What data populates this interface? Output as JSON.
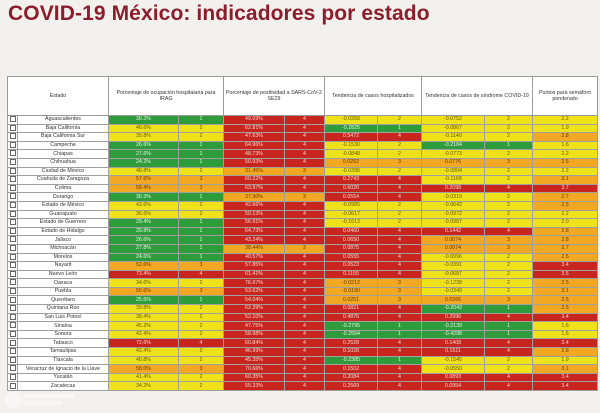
{
  "title": "COVID-19 México: indicadores por estado",
  "headers": {
    "state": "Estado",
    "hosp": "Porcentaje de ocupación hospitalaria para IRAG",
    "posit": "Porcentaje de positividad a SARS-CoV-2 SE29",
    "trend_hosp": "Tendencia de casos hospitalizados",
    "trend_cases": "Tendencia de casos de síndrome COVID-19",
    "points": "Puntos para semáforo ponderado"
  },
  "colors": {
    "g": "#2f9c3c",
    "y": "#f0e21a",
    "o": "#f2a822",
    "r": "#c8251f"
  },
  "rows": [
    {
      "state": "Aguascalientes",
      "hosp": "30.2%",
      "hosp_pts": "1",
      "hosp_c": "g",
      "posit": "49.69%",
      "posit_pts": "4",
      "posit_c": "r",
      "th": "-0.0358",
      "th_pts": "2",
      "th_c": "y",
      "tc": "-0.0752",
      "tc_pts": "2",
      "tc_c": "y",
      "total": "2.2",
      "total_c": "y"
    },
    {
      "state": "Baja California",
      "hosp": "46.6%",
      "hosp_pts": "2",
      "hosp_c": "y",
      "posit": "62.81%",
      "posit_pts": "4",
      "posit_c": "r",
      "th": "-0.2825",
      "th_pts": "1",
      "th_c": "g",
      "tc": "-0.0867",
      "tc_pts": "2",
      "tc_c": "y",
      "total": "1.9",
      "total_c": "y"
    },
    {
      "state": "Baja California Sur",
      "hosp": "35.8%",
      "hosp_pts": "2",
      "hosp_c": "y",
      "posit": "47.63%",
      "posit_pts": "4",
      "posit_c": "r",
      "th": "0.5472",
      "th_pts": "4",
      "th_c": "r",
      "tc": "-0.1140",
      "tc_pts": "2",
      "tc_c": "y",
      "total": "2.8",
      "total_c": "o"
    },
    {
      "state": "Campeche",
      "hosp": "26.6%",
      "hosp_pts": "1",
      "hosp_c": "g",
      "posit": "64.96%",
      "posit_pts": "4",
      "posit_c": "r",
      "th": "-0.1530",
      "th_pts": "2",
      "th_c": "y",
      "tc": "-0.2184",
      "tc_pts": "1",
      "tc_c": "g",
      "total": "1.6",
      "total_c": "y"
    },
    {
      "state": "Chiapas",
      "hosp": "27.6%",
      "hosp_pts": "1",
      "hosp_c": "g",
      "posit": "48.73%",
      "posit_pts": "4",
      "posit_c": "r",
      "th": "-0.0848",
      "th_pts": "2",
      "th_c": "y",
      "tc": "-0.0773",
      "th2": "",
      "tc_pts": "2",
      "tc_c": "y",
      "total": "2.2",
      "total_c": "y"
    },
    {
      "state": "Chihuahua",
      "hosp": "24.2%",
      "hosp_pts": "1",
      "hosp_c": "g",
      "posit": "50.93%",
      "posit_pts": "4",
      "posit_c": "r",
      "th": "0.0252",
      "th_pts": "3",
      "th_c": "o",
      "tc": "0.0776",
      "tc_pts": "3",
      "tc_c": "o",
      "total": "2.5",
      "total_c": "o"
    },
    {
      "state": "Ciudad de México",
      "hosp": "48.8%",
      "hosp_pts": "2",
      "hosp_c": "y",
      "posit": "31.45%",
      "posit_pts": "3",
      "posit_c": "o",
      "th": "-0.0396",
      "th_pts": "2",
      "th_c": "y",
      "tc": "-0.0804",
      "tc_pts": "2",
      "tc_c": "y",
      "total": "2.2",
      "total_c": "y"
    },
    {
      "state": "Coahuila de Zaragoza",
      "hosp": "57.6%",
      "hosp_pts": "3",
      "hosp_c": "o",
      "posit": "60.22%",
      "posit_pts": "4",
      "posit_c": "r",
      "th": "0.2743",
      "th_pts": "4",
      "th_c": "r",
      "tc": "-0.1168",
      "tc_pts": "2",
      "tc_c": "y",
      "total": "3.1",
      "total_c": "o"
    },
    {
      "state": "Colima",
      "hosp": "58.4%",
      "hosp_pts": "3",
      "hosp_c": "o",
      "posit": "63.97%",
      "posit_pts": "4",
      "posit_c": "r",
      "th": "0.6020",
      "th_pts": "4",
      "th_c": "r",
      "tc": "0.2098",
      "tc_pts": "4",
      "tc_c": "r",
      "total": "3.7",
      "total_c": "r"
    },
    {
      "state": "Durango",
      "hosp": "30.3%",
      "hosp_pts": "1",
      "hosp_c": "g",
      "posit": "37.30%",
      "posit_pts": "3",
      "posit_c": "o",
      "th": "0.0554",
      "th_pts": "4",
      "th_c": "r",
      "tc": "-0.0319",
      "tc_pts": "2",
      "tc_c": "y",
      "total": "2.7",
      "total_c": "o"
    },
    {
      "state": "Estado de México",
      "hosp": "43.6%",
      "hosp_pts": "2",
      "hosp_c": "y",
      "posit": "42.66%",
      "posit_pts": "4",
      "posit_c": "r",
      "th": "-0.0985",
      "th_pts": "2",
      "th_c": "y",
      "tc": "-0.0642",
      "tc_pts": "2",
      "tc_c": "y",
      "total": "2.5",
      "total_c": "o"
    },
    {
      "state": "Guanajuato",
      "hosp": "36.6%",
      "hosp_pts": "2",
      "hosp_c": "y",
      "posit": "50.13%",
      "posit_pts": "4",
      "posit_c": "r",
      "th": "-0.0617",
      "th_pts": "2",
      "th_c": "y",
      "tc": "-0.0972",
      "tc_pts": "2",
      "tc_c": "y",
      "total": "2.2",
      "total_c": "y"
    },
    {
      "state": "Estado de Guerrero",
      "hosp": "29.4%",
      "hosp_pts": "1",
      "hosp_c": "g",
      "posit": "56.91%",
      "posit_pts": "4",
      "posit_c": "r",
      "th": "-0.1613",
      "th_pts": "2",
      "th_c": "y",
      "tc": "-0.0987",
      "tc_pts": "2",
      "tc_c": "y",
      "total": "2.0",
      "total_c": "y"
    },
    {
      "state": "Estado de Hidalgo",
      "hosp": "29.8%",
      "hosp_pts": "1",
      "hosp_c": "g",
      "posit": "64.73%",
      "posit_pts": "4",
      "posit_c": "r",
      "th": "0.0460",
      "th_pts": "4",
      "th_c": "r",
      "tc": "0.1442",
      "tc_pts": "4",
      "tc_c": "r",
      "total": "2.8",
      "total_c": "o"
    },
    {
      "state": "Jalisco",
      "hosp": "26.6%",
      "hosp_pts": "1",
      "hosp_c": "g",
      "posit": "43.24%",
      "posit_pts": "4",
      "posit_c": "r",
      "th": "0.0650",
      "th_pts": "4",
      "th_c": "r",
      "tc": "0.0074",
      "tc_pts": "3",
      "tc_c": "o",
      "total": "2.8",
      "total_c": "o"
    },
    {
      "state": "Michoacán",
      "hosp": "27.8%",
      "hosp_pts": "1",
      "hosp_c": "g",
      "posit": "38.44%",
      "posit_pts": "3",
      "posit_c": "o",
      "th": "0.0875",
      "th_pts": "4",
      "th_c": "r",
      "tc": "0.0074",
      "tc_pts": "3",
      "tc_c": "o",
      "total": "2.7",
      "total_c": "o"
    },
    {
      "state": "Morelos",
      "hosp": "24.6%",
      "hosp_pts": "1",
      "hosp_c": "g",
      "posit": "40.57%",
      "posit_pts": "4",
      "posit_c": "r",
      "th": "0.0555",
      "th_pts": "4",
      "th_c": "r",
      "tc": "-0.0096",
      "tc_pts": "2",
      "tc_c": "y",
      "total": "2.5",
      "total_c": "o"
    },
    {
      "state": "Nayarit",
      "hosp": "52.6%",
      "hosp_pts": "3",
      "hosp_c": "o",
      "posit": "57.85%",
      "posit_pts": "4",
      "posit_c": "r",
      "th": "0.0523",
      "th_pts": "4",
      "th_c": "r",
      "tc": "-0.0391",
      "tc_pts": "2",
      "tc_c": "y",
      "total": "3.4",
      "total_c": "r"
    },
    {
      "state": "Nuevo León",
      "hosp": "73.4%",
      "hosp_pts": "4",
      "hosp_c": "r",
      "posit": "61.41%",
      "posit_pts": "4",
      "posit_c": "r",
      "th": "0.1155",
      "th_pts": "4",
      "th_c": "r",
      "tc": "-0.0687",
      "tc_pts": "2",
      "tc_c": "y",
      "total": "3.5",
      "total_c": "r"
    },
    {
      "state": "Oaxaca",
      "hosp": "34.6%",
      "hosp_pts": "2",
      "hosp_c": "y",
      "posit": "76.97%",
      "posit_pts": "4",
      "posit_c": "r",
      "th": "-0.0212",
      "th_pts": "3",
      "th_c": "o",
      "tc": "-0.1238",
      "tc_pts": "2",
      "tc_c": "y",
      "total": "2.5",
      "total_c": "o"
    },
    {
      "state": "Puebla",
      "hosp": "50.6%",
      "hosp_pts": "3",
      "hosp_c": "o",
      "posit": "53.62%",
      "posit_pts": "4",
      "posit_c": "r",
      "th": "-0.0190",
      "th_pts": "3",
      "th_c": "o",
      "tc": "-0.0349",
      "tc_pts": "2",
      "tc_c": "y",
      "total": "3.1",
      "total_c": "o"
    },
    {
      "state": "Querétaro",
      "hosp": "25.6%",
      "hosp_pts": "1",
      "hosp_c": "g",
      "posit": "54.04%",
      "posit_pts": "4",
      "posit_c": "r",
      "th": "0.0251",
      "th_pts": "3",
      "th_c": "o",
      "tc": "0.0266",
      "tc_pts": "3",
      "tc_c": "o",
      "total": "2.5",
      "total_c": "o"
    },
    {
      "state": "Quintana Roo",
      "hosp": "39.8%",
      "hosp_pts": "2",
      "hosp_c": "y",
      "posit": "62.39%",
      "posit_pts": "4",
      "posit_c": "r",
      "th": "0.0821",
      "th_pts": "4",
      "th_c": "r",
      "tc": "-0.2043",
      "tc_pts": "1",
      "tc_c": "g",
      "total": "2.5",
      "total_c": "o"
    },
    {
      "state": "San Luis Potosí",
      "hosp": "38.4%",
      "hosp_pts": "2",
      "hosp_c": "y",
      "posit": "52.10%",
      "posit_pts": "4",
      "posit_c": "r",
      "th": "0.4876",
      "th_pts": "4",
      "th_c": "r",
      "tc": "0.2996",
      "tc_pts": "4",
      "tc_c": "r",
      "total": "3.4",
      "total_c": "r"
    },
    {
      "state": "Sinaloa",
      "hosp": "45.2%",
      "hosp_pts": "2",
      "hosp_c": "y",
      "posit": "47.75%",
      "posit_pts": "4",
      "posit_c": "r",
      "th": "-0.2795",
      "th_pts": "1",
      "th_c": "g",
      "tc": "-0.2139",
      "tc_pts": "1",
      "tc_c": "g",
      "total": "1.6",
      "total_c": "y"
    },
    {
      "state": "Sonora",
      "hosp": "42.4%",
      "hosp_pts": "2",
      "hosp_c": "y",
      "posit": "58.98%",
      "posit_pts": "4",
      "posit_c": "r",
      "th": "-0.2554",
      "th_pts": "1",
      "th_c": "g",
      "tc": "-0.4298",
      "tc_pts": "1",
      "tc_c": "g",
      "total": "1.6",
      "total_c": "y"
    },
    {
      "state": "Tabasco",
      "hosp": "72.6%",
      "hosp_pts": "4",
      "hosp_c": "r",
      "posit": "60.84%",
      "posit_pts": "4",
      "posit_c": "r",
      "th": "0.2528",
      "th_pts": "4",
      "th_c": "r",
      "tc": "0.1408",
      "tc_pts": "4",
      "tc_c": "r",
      "total": "3.4",
      "total_c": "r"
    },
    {
      "state": "Tamaulipas",
      "hosp": "42.4%",
      "hosp_pts": "2",
      "hosp_c": "y",
      "posit": "46.99%",
      "posit_pts": "4",
      "posit_c": "r",
      "th": "0.1028",
      "th_pts": "4",
      "th_c": "r",
      "tc": "0.1511",
      "tc_pts": "4",
      "tc_c": "r",
      "total": "2.8",
      "total_c": "o"
    },
    {
      "state": "Tlaxcala",
      "hosp": "40.8%",
      "hosp_pts": "2",
      "hosp_c": "y",
      "posit": "45.35%",
      "posit_pts": "4",
      "posit_c": "r",
      "th": "-0.2385",
      "th_pts": "1",
      "th_c": "g",
      "tc": "-0.1545",
      "tc_pts": "2",
      "tc_c": "y",
      "total": "1.9",
      "total_c": "y"
    },
    {
      "state": "Veracruz de Ignacio de la Llave",
      "hosp": "58.0%",
      "hosp_pts": "3",
      "hosp_c": "o",
      "posit": "70.66%",
      "posit_pts": "4",
      "posit_c": "r",
      "th": "0.1502",
      "th_pts": "4",
      "th_c": "r",
      "tc": "-0.0550",
      "tc_pts": "2",
      "tc_c": "y",
      "total": "3.1",
      "total_c": "o"
    },
    {
      "state": "Yucatán",
      "hosp": "41.4%",
      "hosp_pts": "2",
      "hosp_c": "y",
      "posit": "60.35%",
      "posit_pts": "4",
      "posit_c": "r",
      "th": "0.2084",
      "th_pts": "4",
      "th_c": "r",
      "tc": "0.0893",
      "tc_pts": "4",
      "tc_c": "r",
      "total": "3.4",
      "total_c": "r"
    },
    {
      "state": "Zacatecas",
      "hosp": "34.2%",
      "hosp_pts": "2",
      "hosp_c": "y",
      "posit": "55.33%",
      "posit_pts": "4",
      "posit_c": "r",
      "th": "0.2569",
      "th_pts": "4",
      "th_c": "r",
      "tc": "0.0954",
      "tc_pts": "4",
      "tc_c": "r",
      "total": "3.4",
      "total_c": "r"
    }
  ]
}
